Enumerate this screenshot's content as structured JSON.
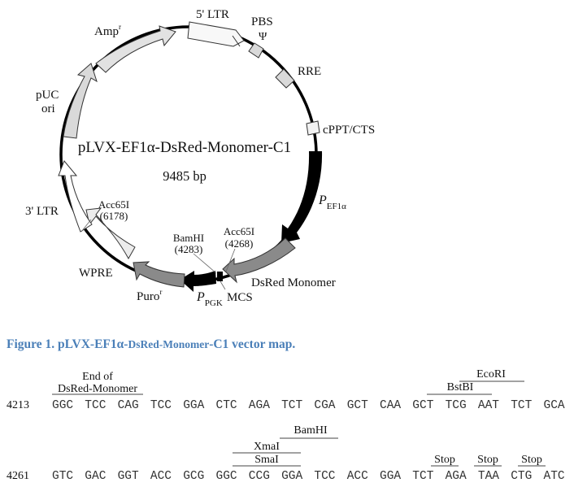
{
  "map": {
    "name": "pLVX-EF1α-DsRed-Monomer-C1",
    "size": "9485 bp",
    "features": {
      "ltr5": "5' LTR",
      "pbs": "PBS",
      "psi": "Ψ",
      "rre": "RRE",
      "cppt": "cPPT/CTS",
      "pef1a_main": "P",
      "pef1a_sub": "EF1α",
      "dsred": "DsRed Monomer",
      "mcs": "MCS",
      "ppgk_main": "P",
      "ppgk_sub": "PGK",
      "puro_main": "Puro",
      "puro_sup": "r",
      "wpre": "WPRE",
      "ltr3": "3' LTR",
      "puc_line1": "pUC",
      "puc_line2": "ori",
      "amp_main": "Amp",
      "amp_sup": "r"
    },
    "sites": {
      "acc_right_name": "Acc65I",
      "acc_right_pos": "(4268)",
      "bam_name": "BamHI",
      "bam_pos": "(4283)",
      "acc_left_name": "Acc65I",
      "acc_left_pos": "(6178)"
    }
  },
  "caption": {
    "prefix": "Figure 1. pLVX-EF1α-",
    "middle": "DsRed-Monomer",
    "suffix": "-C1 vector map."
  },
  "sequence": {
    "row1": {
      "number": "4213",
      "codons": [
        "GGC",
        "TCC",
        "CAG",
        "TCC",
        "GGA",
        "CTC",
        "AGA",
        "TCT",
        "CGA",
        "GCT",
        "CAA",
        "GCT",
        "TCG",
        "AAT",
        "TCT",
        "GCA"
      ],
      "end_label_line1": "End of",
      "end_label_line2": "DsRed-Monomer",
      "sites": {
        "ecori": "EcoRI",
        "bstbi": "BstBI"
      }
    },
    "row2": {
      "number": "4261",
      "codons": [
        "GTC",
        "GAC",
        "GGT",
        "ACC",
        "GCG",
        "GGC",
        "CCG",
        "GGA",
        "TCC",
        "ACC",
        "GGA",
        "TCT",
        "AGA",
        "TAA",
        "CTG",
        "ATC"
      ],
      "sites": {
        "bamhi": "BamHI",
        "xmai": "XmaI",
        "smai": "SmaI"
      },
      "stops": [
        "Stop",
        "Stop",
        "Stop"
      ]
    }
  }
}
